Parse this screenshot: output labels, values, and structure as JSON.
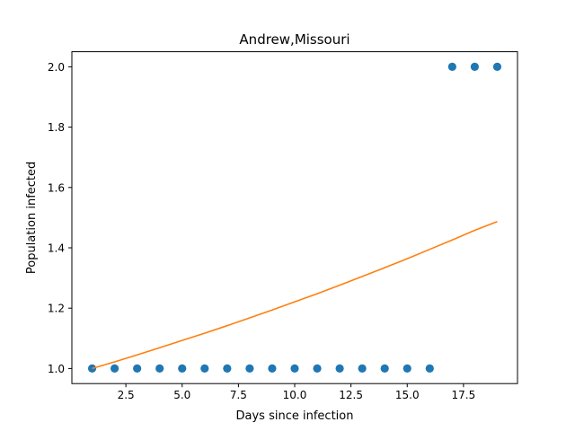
{
  "chart_data": {
    "type": "scatter",
    "title": "Andrew,Missouri",
    "xlabel": "Days since infection",
    "ylabel": "Population infected",
    "xlim": [
      0.1,
      19.9
    ],
    "ylim": [
      0.95,
      2.05
    ],
    "x_ticks": [
      2.5,
      5.0,
      7.5,
      10.0,
      12.5,
      15.0,
      17.5
    ],
    "x_tick_labels": [
      "2.5",
      "5.0",
      "7.5",
      "10.0",
      "12.5",
      "15.0",
      "17.5"
    ],
    "y_ticks": [
      1.0,
      1.2,
      1.4,
      1.6,
      1.8,
      2.0
    ],
    "y_tick_labels": [
      "1.0",
      "1.2",
      "1.4",
      "1.6",
      "1.8",
      "2.0"
    ],
    "grid": false,
    "series": [
      {
        "kind": "scatter",
        "color": "#1f77b4",
        "x": [
          1,
          2,
          3,
          4,
          5,
          6,
          7,
          8,
          9,
          10,
          11,
          12,
          13,
          14,
          15,
          16,
          17,
          18,
          19
        ],
        "y": [
          1,
          1,
          1,
          1,
          1,
          1,
          1,
          1,
          1,
          1,
          1,
          1,
          1,
          1,
          1,
          1,
          2,
          2,
          2
        ]
      },
      {
        "kind": "line",
        "color": "#ff7f0e",
        "x": [
          1,
          2,
          3,
          4,
          5,
          6,
          7,
          8,
          9,
          10,
          11,
          12,
          13,
          14,
          15,
          16,
          17,
          18,
          19
        ],
        "y": [
          1.0,
          1.022,
          1.045,
          1.069,
          1.093,
          1.117,
          1.142,
          1.168,
          1.194,
          1.221,
          1.248,
          1.276,
          1.305,
          1.334,
          1.364,
          1.395,
          1.426,
          1.458,
          1.487
        ]
      }
    ]
  }
}
